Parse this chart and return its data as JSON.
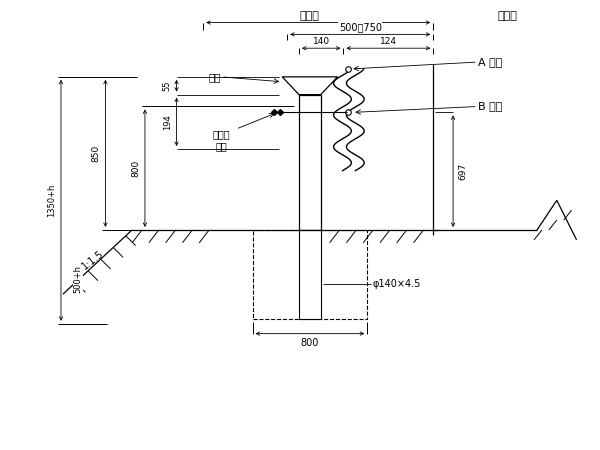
{
  "bg_color": "#ffffff",
  "labels": {
    "top_left": "土路肩",
    "top_right": "路缘卷",
    "zhu_mao": "柱帽",
    "liu_jiao_tou": "六角头\n螺栋",
    "A_node": "A 节点",
    "B_node": "B 节点",
    "phi_label": "φ140×4.5",
    "dim_500_750": "500～750",
    "dim_140": "140",
    "dim_124": "124",
    "dim_55": "55",
    "dim_194": "194",
    "dim_800": "800",
    "dim_850": "850",
    "dim_697": "697",
    "dim_1350h": "1350+h",
    "dim_500h": "500+h",
    "dim_800_bot": "800",
    "slope": "1:1.5"
  }
}
